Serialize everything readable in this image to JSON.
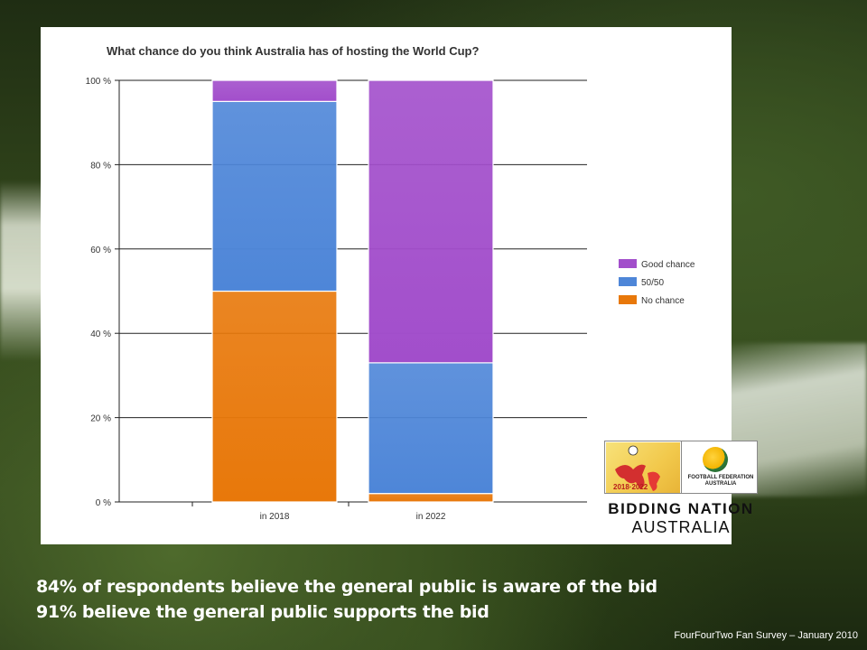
{
  "chart_data": {
    "type": "bar",
    "stacked": true,
    "title": "What chance do you think Australia has of hosting the World Cup?",
    "categories": [
      "in 2018",
      "in 2022"
    ],
    "series": [
      {
        "name": "No chance",
        "values": [
          50,
          2
        ],
        "color": "#e8780a"
      },
      {
        "name": "50/50",
        "values": [
          45,
          31
        ],
        "color": "#4e86d8"
      },
      {
        "name": "Good chance",
        "values": [
          5,
          67
        ],
        "color": "#a24ecb"
      }
    ],
    "ylim": [
      0,
      100
    ],
    "yticks": [
      "0 %",
      "20 %",
      "40 %",
      "60 %",
      "80 %",
      "100 %"
    ],
    "ytick_values": [
      0,
      20,
      40,
      60,
      80,
      100
    ],
    "legend_order": [
      "Good chance",
      "50/50",
      "No chance"
    ],
    "legend_position": "right",
    "grid": true
  },
  "logo": {
    "years": "2018·2022",
    "ffa_text": "FOOTBALL FEDERATION AUSTRALIA",
    "line1": "BIDDING NATION",
    "line2": "AUSTRALIA"
  },
  "notes": {
    "line1": "84% of respondents believe the general public is aware of the bid",
    "line2": "91% believe the general public supports the bid"
  },
  "source": "FourFourTwo Fan Survey – January 2010"
}
